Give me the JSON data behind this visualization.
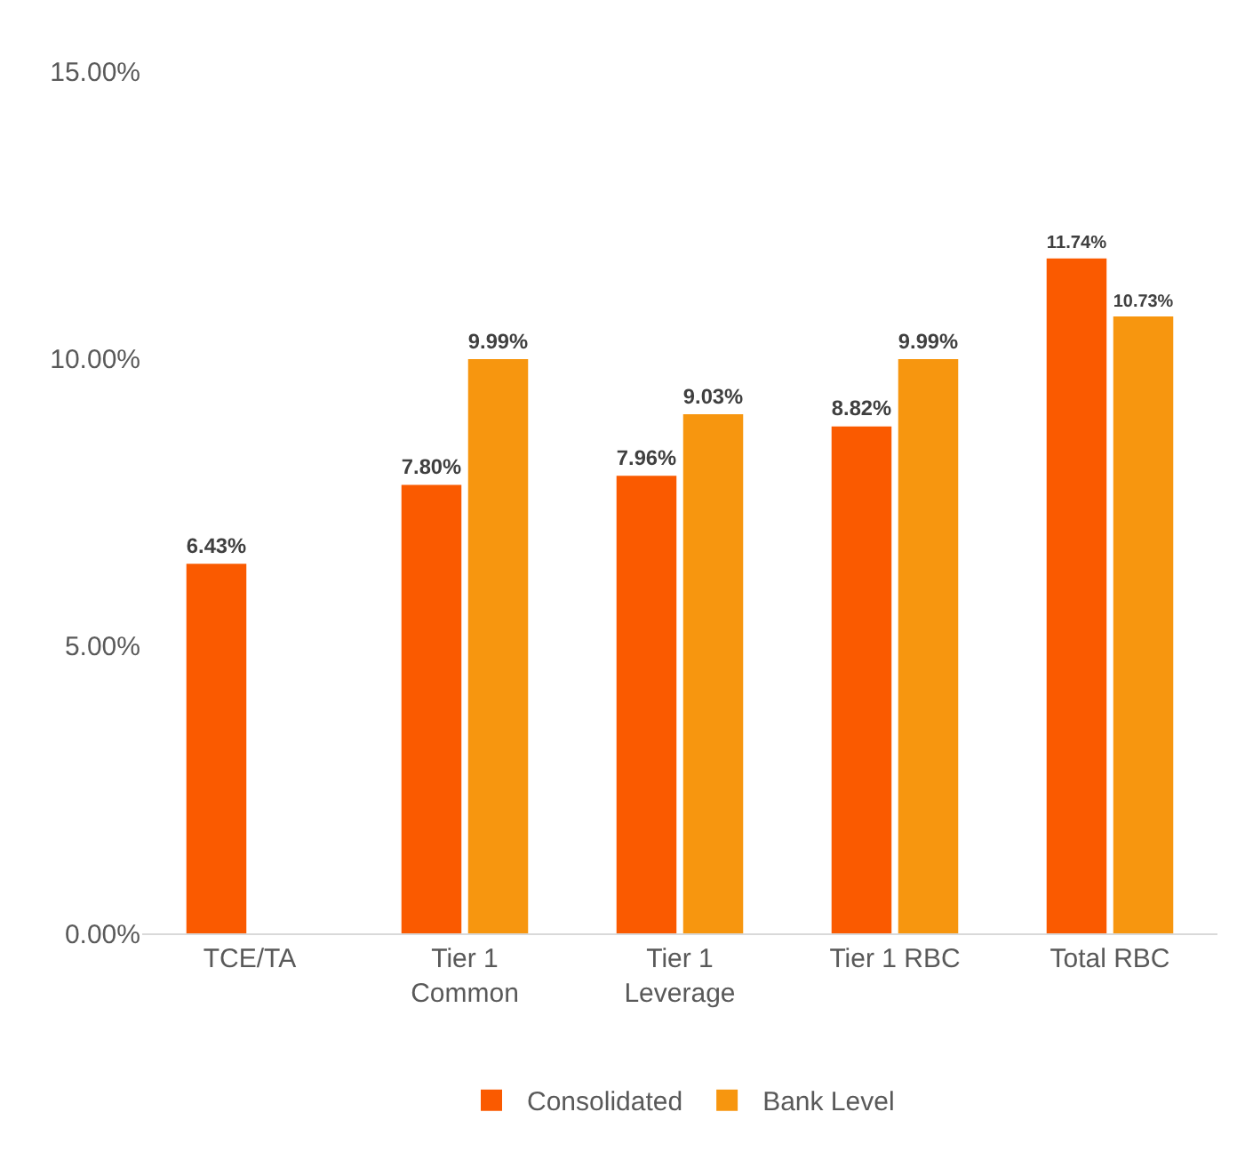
{
  "chart_data": {
    "type": "bar",
    "categories": [
      "TCE/TA",
      "Tier 1 Common",
      "Tier 1 Leverage",
      "Tier 1 RBC",
      "Total RBC"
    ],
    "series": [
      {
        "name": "Consolidated",
        "color": "#fa5a00",
        "values": [
          6.43,
          7.8,
          7.96,
          8.82,
          11.74
        ],
        "value_labels": [
          "6.43%",
          "7.80%",
          "7.96%",
          "8.82%",
          "11.74%"
        ]
      },
      {
        "name": "Bank Level",
        "color": "#f7960f",
        "values": [
          null,
          9.99,
          9.03,
          9.99,
          10.73
        ],
        "value_labels": [
          null,
          "9.99%",
          "9.03%",
          "9.99%",
          "10.73%"
        ]
      }
    ],
    "ylim": [
      0,
      15
    ],
    "yticks": [
      {
        "value": 0,
        "label": "0.00%"
      },
      {
        "value": 5,
        "label": "5.00%"
      },
      {
        "value": 10,
        "label": "10.00%"
      },
      {
        "value": 15,
        "label": "15.00%"
      }
    ],
    "grid": false,
    "legend": "bottom"
  }
}
